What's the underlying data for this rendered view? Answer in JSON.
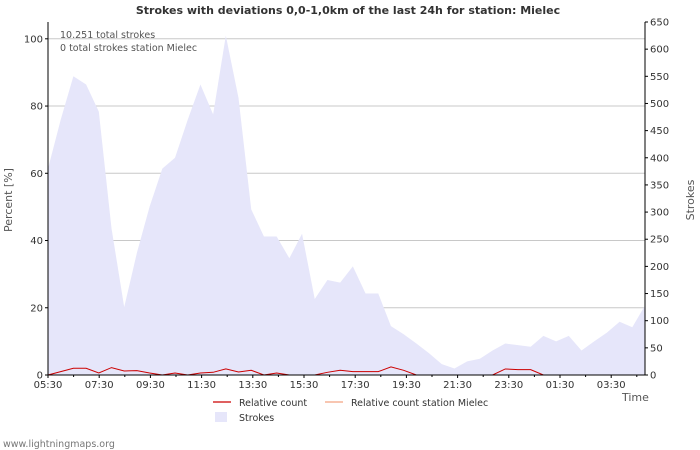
{
  "chart_data": {
    "type": "area",
    "title": "Strokes with deviations 0,0-1,0km of the last 24h for station: Mielec",
    "ylabel_left": "Percent   [%]",
    "ylabel_right": "Strokes",
    "xlabel": "Time",
    "y_left_range": [
      0,
      105
    ],
    "y_right_range": [
      0,
      650
    ],
    "y_left_ticks": [
      "0",
      "20",
      "40",
      "60",
      "80",
      "100"
    ],
    "y_right_ticks": [
      "0",
      "50",
      "100",
      "150",
      "200",
      "250",
      "300",
      "350",
      "400",
      "450",
      "500",
      "550",
      "600",
      "650"
    ],
    "x_tick_labels": [
      "05:30",
      "07:30",
      "09:30",
      "11:30",
      "13:30",
      "15:30",
      "17:30",
      "19:30",
      "21:30",
      "23:30",
      "01:30",
      "03:30"
    ],
    "grid": true,
    "annotations": [
      "10.251 total strokes",
      "0 total strokes station Mielec"
    ],
    "series": [
      {
        "name": "Strokes",
        "axis": "right",
        "color": "#e6e6fa",
        "values": [
          380,
          470,
          550,
          535,
          485,
          270,
          125,
          225,
          310,
          380,
          400,
          470,
          535,
          480,
          625,
          510,
          305,
          255,
          255,
          215,
          260,
          140,
          175,
          170,
          200,
          150,
          150,
          90,
          75,
          58,
          40,
          20,
          12,
          25,
          30,
          45,
          58,
          55,
          52,
          72,
          62,
          72,
          45,
          62,
          78,
          98,
          88,
          128
        ]
      },
      {
        "name": "Relative count",
        "axis": "left",
        "color": "#cc0000",
        "values": [
          0,
          1.0,
          2.0,
          2.0,
          0.6,
          2.2,
          1.2,
          1.3,
          0.6,
          0,
          0.6,
          0,
          0.6,
          0.8,
          1.8,
          0.9,
          1.4,
          0,
          0.6,
          0,
          0,
          0,
          0.8,
          1.4,
          1.0,
          1.0,
          1.0,
          2.4,
          1.4,
          0,
          0,
          0,
          0,
          0,
          0,
          0,
          1.8,
          1.6,
          1.6,
          0,
          0,
          0,
          0,
          0,
          0,
          0,
          0,
          0
        ]
      },
      {
        "name": "Relative count station Mielec",
        "axis": "left",
        "color": "#f4a582",
        "values": []
      }
    ],
    "legend": [
      "Relative count",
      "Relative count station Mielec",
      "Strokes"
    ],
    "legend_position": "bottom-center"
  },
  "watermark": "www.lightningmaps.org"
}
